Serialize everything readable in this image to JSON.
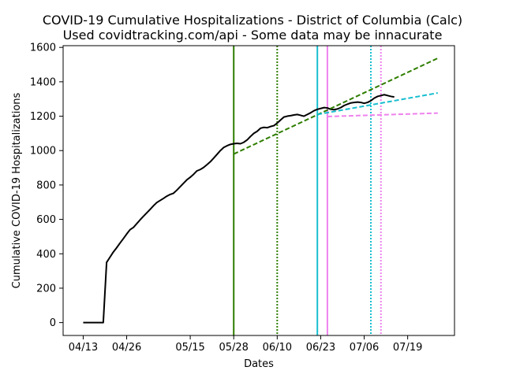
{
  "chart_data": {
    "type": "line",
    "title": "COVID-19 Cumulative Hospitalizations - District of Columbia (Calc)",
    "subtitle": "Used covidtracking.com/api - Some data may be innacurate",
    "xlabel": "Dates",
    "ylabel": "Cumulative COVID-19 Hospitalizations",
    "xlim": [
      "2020-04-07",
      "2020-08-02"
    ],
    "ylim": [
      -75,
      1610
    ],
    "x_ticks": [
      {
        "date": "2020-04-13",
        "label": "04/13"
      },
      {
        "date": "2020-04-26",
        "label": "04/26"
      },
      {
        "date": "2020-05-15",
        "label": "05/15"
      },
      {
        "date": "2020-05-28",
        "label": "05/28"
      },
      {
        "date": "2020-06-10",
        "label": "06/10"
      },
      {
        "date": "2020-06-23",
        "label": "06/23"
      },
      {
        "date": "2020-07-06",
        "label": "07/06"
      },
      {
        "date": "2020-07-19",
        "label": "07/19"
      }
    ],
    "y_ticks": [
      0,
      200,
      400,
      600,
      800,
      1000,
      1200,
      1400,
      1600
    ],
    "grid": false,
    "colors": {
      "actual": "#000000",
      "fit_may28": "#2e7d00",
      "fit_jun22": "#17becf",
      "fit_jun25": "#ee82ee"
    },
    "series": [
      {
        "style": "solid",
        "color": "#000000",
        "points": [
          [
            "2020-04-13",
            0
          ],
          [
            "2020-04-14",
            0
          ],
          [
            "2020-04-15",
            0
          ],
          [
            "2020-04-16",
            0
          ],
          [
            "2020-04-17",
            0
          ],
          [
            "2020-04-18",
            0
          ],
          [
            "2020-04-19",
            0
          ],
          [
            "2020-04-20",
            350
          ],
          [
            "2020-04-21",
            380
          ],
          [
            "2020-04-22",
            410
          ],
          [
            "2020-04-23",
            435
          ],
          [
            "2020-04-24",
            462
          ],
          [
            "2020-04-25",
            488
          ],
          [
            "2020-04-26",
            515
          ],
          [
            "2020-04-27",
            540
          ],
          [
            "2020-04-28",
            553
          ],
          [
            "2020-04-29",
            575
          ],
          [
            "2020-04-30",
            597
          ],
          [
            "2020-05-01",
            618
          ],
          [
            "2020-05-02",
            638
          ],
          [
            "2020-05-03",
            658
          ],
          [
            "2020-05-04",
            679
          ],
          [
            "2020-05-05",
            698
          ],
          [
            "2020-05-06",
            710
          ],
          [
            "2020-05-07",
            722
          ],
          [
            "2020-05-08",
            735
          ],
          [
            "2020-05-09",
            745
          ],
          [
            "2020-05-10",
            752
          ],
          [
            "2020-05-11",
            770
          ],
          [
            "2020-05-12",
            790
          ],
          [
            "2020-05-13",
            810
          ],
          [
            "2020-05-14",
            830
          ],
          [
            "2020-05-15",
            845
          ],
          [
            "2020-05-16",
            862
          ],
          [
            "2020-05-17",
            882
          ],
          [
            "2020-05-18",
            890
          ],
          [
            "2020-05-19",
            902
          ],
          [
            "2020-05-20",
            918
          ],
          [
            "2020-05-21",
            935
          ],
          [
            "2020-05-22",
            956
          ],
          [
            "2020-05-23",
            978
          ],
          [
            "2020-05-24",
            1000
          ],
          [
            "2020-05-25",
            1018
          ],
          [
            "2020-05-26",
            1028
          ],
          [
            "2020-05-27",
            1036
          ],
          [
            "2020-05-28",
            1040
          ],
          [
            "2020-05-29",
            1042
          ],
          [
            "2020-05-30",
            1040
          ],
          [
            "2020-05-31",
            1048
          ],
          [
            "2020-06-01",
            1062
          ],
          [
            "2020-06-02",
            1082
          ],
          [
            "2020-06-03",
            1100
          ],
          [
            "2020-06-04",
            1112
          ],
          [
            "2020-06-05",
            1130
          ],
          [
            "2020-06-06",
            1135
          ],
          [
            "2020-06-07",
            1133
          ],
          [
            "2020-06-08",
            1140
          ],
          [
            "2020-06-09",
            1145
          ],
          [
            "2020-06-10",
            1160
          ],
          [
            "2020-06-11",
            1178
          ],
          [
            "2020-06-12",
            1195
          ],
          [
            "2020-06-13",
            1200
          ],
          [
            "2020-06-14",
            1203
          ],
          [
            "2020-06-15",
            1207
          ],
          [
            "2020-06-16",
            1210
          ],
          [
            "2020-06-17",
            1205
          ],
          [
            "2020-06-18",
            1200
          ],
          [
            "2020-06-19",
            1210
          ],
          [
            "2020-06-20",
            1220
          ],
          [
            "2020-06-21",
            1232
          ],
          [
            "2020-06-22",
            1240
          ],
          [
            "2020-06-23",
            1245
          ],
          [
            "2020-06-24",
            1250
          ],
          [
            "2020-06-25",
            1248
          ],
          [
            "2020-06-26",
            1240
          ],
          [
            "2020-06-27",
            1238
          ],
          [
            "2020-06-28",
            1242
          ],
          [
            "2020-06-29",
            1250
          ],
          [
            "2020-06-30",
            1262
          ],
          [
            "2020-07-01",
            1270
          ],
          [
            "2020-07-02",
            1277
          ],
          [
            "2020-07-03",
            1280
          ],
          [
            "2020-07-04",
            1282
          ],
          [
            "2020-07-05",
            1280
          ],
          [
            "2020-07-06",
            1275
          ],
          [
            "2020-07-07",
            1280
          ],
          [
            "2020-07-08",
            1290
          ],
          [
            "2020-07-09",
            1305
          ],
          [
            "2020-07-10",
            1315
          ],
          [
            "2020-07-11",
            1320
          ],
          [
            "2020-07-12",
            1325
          ],
          [
            "2020-07-13",
            1320
          ],
          [
            "2020-07-14",
            1315
          ],
          [
            "2020-07-15",
            1312
          ]
        ]
      },
      {
        "style": "dashed",
        "color": "#2e7d00",
        "points": [
          [
            "2020-05-28",
            980
          ],
          [
            "2020-07-28",
            1537
          ]
        ]
      },
      {
        "style": "dashed",
        "color": "#17becf",
        "points": [
          [
            "2020-06-22",
            1210
          ],
          [
            "2020-07-28",
            1335
          ]
        ]
      },
      {
        "style": "dashed",
        "color": "#ee82ee",
        "points": [
          [
            "2020-06-25",
            1198
          ],
          [
            "2020-07-28",
            1218
          ]
        ]
      }
    ],
    "vertical_lines": [
      {
        "date": "2020-05-28",
        "style": "solid",
        "color": "#2e7d00"
      },
      {
        "date": "2020-06-10",
        "style": "dotted",
        "color": "#2e7d00"
      },
      {
        "date": "2020-06-22",
        "style": "solid",
        "color": "#17becf"
      },
      {
        "date": "2020-06-25",
        "style": "solid",
        "color": "#ee82ee"
      },
      {
        "date": "2020-07-08",
        "style": "dotted",
        "color": "#17becf"
      },
      {
        "date": "2020-07-11",
        "style": "dotted",
        "color": "#ee82ee"
      }
    ]
  }
}
